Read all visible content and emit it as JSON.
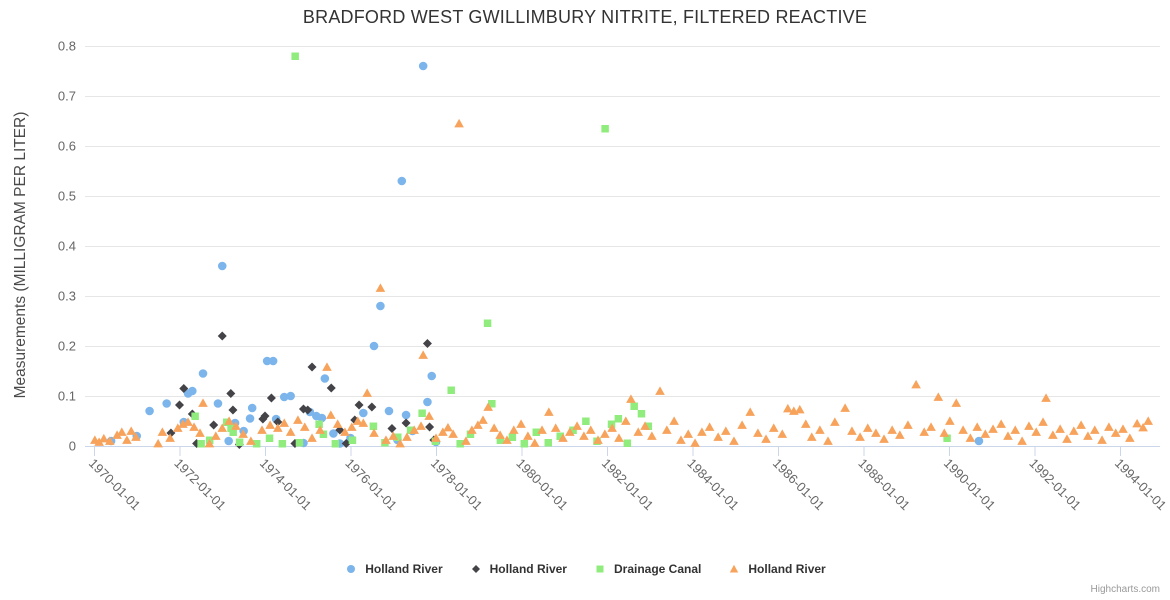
{
  "credits": "Highcharts.com",
  "styles": {
    "grid_color": "#e6e6e6",
    "axis_line_color": "#ccd6eb",
    "tick_label_color": "#666666",
    "title_color": "#333333",
    "legend_text_color": "#333333",
    "credits_color": "#999999"
  },
  "chart_data": {
    "type": "scatter",
    "title": "BRADFORD WEST GWILLIMBURY NITRITE, FILTERED REACTIVE",
    "xlabel": "",
    "ylabel": "Measurements (MILLIGRAM PER LITER)",
    "ylim": [
      0,
      0.8
    ],
    "y_ticks": [
      0,
      0.1,
      0.2,
      0.3,
      0.4,
      0.5,
      0.6,
      0.7,
      0.8
    ],
    "x_ticks": [
      "1970-01-01",
      "1972-01-01",
      "1974-01-01",
      "1976-01-01",
      "1978-01-01",
      "1980-01-01",
      "1982-01-01",
      "1984-01-01",
      "1986-01-01",
      "1988-01-01",
      "1990-01-01",
      "1992-01-01",
      "1994-01-01"
    ],
    "x_range_years": [
      1969.75,
      1996.1
    ],
    "grid": "horizontal",
    "legend_position": "bottom-center",
    "series": [
      {
        "name": "Holland River",
        "marker": "circle",
        "color": "#7cb5ec",
        "points": [
          [
            1970.4,
            0.01
          ],
          [
            1971.0,
            0.02
          ],
          [
            1971.3,
            0.07
          ],
          [
            1971.7,
            0.085
          ],
          [
            1972.1,
            0.048
          ],
          [
            1972.2,
            0.105
          ],
          [
            1972.3,
            0.11
          ],
          [
            1972.55,
            0.145
          ],
          [
            1972.9,
            0.085
          ],
          [
            1973.0,
            0.36
          ],
          [
            1973.15,
            0.01
          ],
          [
            1973.3,
            0.046
          ],
          [
            1973.5,
            0.03
          ],
          [
            1973.65,
            0.055
          ],
          [
            1973.7,
            0.076
          ],
          [
            1974.05,
            0.17
          ],
          [
            1974.19,
            0.17
          ],
          [
            1974.26,
            0.054
          ],
          [
            1974.45,
            0.098
          ],
          [
            1974.6,
            0.1
          ],
          [
            1974.9,
            0.006
          ],
          [
            1975.05,
            0.068
          ],
          [
            1975.2,
            0.06
          ],
          [
            1975.33,
            0.056
          ],
          [
            1975.4,
            0.135
          ],
          [
            1975.6,
            0.025
          ],
          [
            1975.75,
            0.005
          ],
          [
            1976.0,
            0.016
          ],
          [
            1976.3,
            0.066
          ],
          [
            1976.55,
            0.2
          ],
          [
            1976.7,
            0.28
          ],
          [
            1976.9,
            0.07
          ],
          [
            1977.1,
            0.012
          ],
          [
            1977.2,
            0.53
          ],
          [
            1977.3,
            0.062
          ],
          [
            1977.45,
            0.03
          ],
          [
            1977.7,
            0.76
          ],
          [
            1977.8,
            0.088
          ],
          [
            1977.9,
            0.14
          ],
          [
            1978.0,
            0.008
          ],
          [
            1990.7,
            0.01
          ]
        ]
      },
      {
        "name": "Holland River",
        "marker": "diamond",
        "color": "#434348",
        "points": [
          [
            1971.8,
            0.026
          ],
          [
            1972.0,
            0.082
          ],
          [
            1972.1,
            0.115
          ],
          [
            1972.3,
            0.064
          ],
          [
            1972.4,
            0.005
          ],
          [
            1972.8,
            0.042
          ],
          [
            1973.0,
            0.22
          ],
          [
            1973.2,
            0.105
          ],
          [
            1973.25,
            0.072
          ],
          [
            1973.4,
            0.003
          ],
          [
            1973.95,
            0.054
          ],
          [
            1974.0,
            0.06
          ],
          [
            1974.15,
            0.096
          ],
          [
            1974.3,
            0.048
          ],
          [
            1974.7,
            0.005
          ],
          [
            1974.9,
            0.074
          ],
          [
            1975.0,
            0.072
          ],
          [
            1975.1,
            0.158
          ],
          [
            1975.55,
            0.116
          ],
          [
            1975.75,
            0.032
          ],
          [
            1975.9,
            0.005
          ],
          [
            1976.1,
            0.052
          ],
          [
            1976.2,
            0.082
          ],
          [
            1976.5,
            0.078
          ],
          [
            1976.97,
            0.035
          ],
          [
            1977.3,
            0.046
          ],
          [
            1977.8,
            0.205
          ],
          [
            1977.85,
            0.038
          ],
          [
            1977.95,
            0.012
          ]
        ]
      },
      {
        "name": "Drainage Canal",
        "marker": "square",
        "color": "#90ed7d",
        "points": [
          [
            1972.36,
            0.06
          ],
          [
            1972.5,
            0.005
          ],
          [
            1972.7,
            0.012
          ],
          [
            1973.1,
            0.048
          ],
          [
            1973.2,
            0.036
          ],
          [
            1973.25,
            0.028
          ],
          [
            1973.4,
            0.008
          ],
          [
            1973.8,
            0.005
          ],
          [
            1974.1,
            0.016
          ],
          [
            1974.4,
            0.005
          ],
          [
            1974.7,
            0.78
          ],
          [
            1974.8,
            0.007
          ],
          [
            1975.26,
            0.044
          ],
          [
            1975.36,
            0.024
          ],
          [
            1975.64,
            0.005
          ],
          [
            1976.04,
            0.012
          ],
          [
            1976.53,
            0.04
          ],
          [
            1976.8,
            0.007
          ],
          [
            1977.1,
            0.018
          ],
          [
            1977.4,
            0.032
          ],
          [
            1977.67,
            0.066
          ],
          [
            1977.98,
            0.01
          ],
          [
            1978.35,
            0.112
          ],
          [
            1978.56,
            0.005
          ],
          [
            1978.8,
            0.024
          ],
          [
            1979.2,
            0.246
          ],
          [
            1979.3,
            0.085
          ],
          [
            1979.5,
            0.012
          ],
          [
            1979.78,
            0.018
          ],
          [
            1980.06,
            0.005
          ],
          [
            1980.34,
            0.028
          ],
          [
            1980.62,
            0.007
          ],
          [
            1980.9,
            0.02
          ],
          [
            1981.2,
            0.032
          ],
          [
            1981.5,
            0.05
          ],
          [
            1981.76,
            0.01
          ],
          [
            1981.95,
            0.635
          ],
          [
            1982.1,
            0.044
          ],
          [
            1982.26,
            0.055
          ],
          [
            1982.47,
            0.006
          ],
          [
            1982.63,
            0.08
          ],
          [
            1982.8,
            0.065
          ],
          [
            1982.96,
            0.04
          ],
          [
            1989.95,
            0.016
          ]
        ]
      },
      {
        "name": "Holland River",
        "marker": "triangle",
        "color": "#f7a35c",
        "points": [
          [
            1970.02,
            0.012
          ],
          [
            1970.12,
            0.008
          ],
          [
            1970.23,
            0.015
          ],
          [
            1970.37,
            0.01
          ],
          [
            1970.54,
            0.022
          ],
          [
            1970.65,
            0.028
          ],
          [
            1970.77,
            0.012
          ],
          [
            1970.87,
            0.03
          ],
          [
            1970.98,
            0.018
          ],
          [
            1971.5,
            0.005
          ],
          [
            1971.6,
            0.028
          ],
          [
            1971.78,
            0.016
          ],
          [
            1971.96,
            0.036
          ],
          [
            1972.08,
            0.044
          ],
          [
            1972.2,
            0.048
          ],
          [
            1972.34,
            0.038
          ],
          [
            1972.48,
            0.026
          ],
          [
            1972.55,
            0.086
          ],
          [
            1972.7,
            0.005
          ],
          [
            1972.85,
            0.02
          ],
          [
            1973.0,
            0.036
          ],
          [
            1973.16,
            0.05
          ],
          [
            1973.32,
            0.04
          ],
          [
            1973.49,
            0.024
          ],
          [
            1973.67,
            0.01
          ],
          [
            1973.93,
            0.032
          ],
          [
            1974.12,
            0.042
          ],
          [
            1974.3,
            0.036
          ],
          [
            1974.45,
            0.046
          ],
          [
            1974.6,
            0.028
          ],
          [
            1974.77,
            0.052
          ],
          [
            1974.93,
            0.038
          ],
          [
            1975.1,
            0.016
          ],
          [
            1975.29,
            0.032
          ],
          [
            1975.45,
            0.158
          ],
          [
            1975.54,
            0.062
          ],
          [
            1975.7,
            0.044
          ],
          [
            1975.87,
            0.028
          ],
          [
            1976.03,
            0.038
          ],
          [
            1976.17,
            0.05
          ],
          [
            1976.3,
            0.046
          ],
          [
            1976.39,
            0.106
          ],
          [
            1976.55,
            0.026
          ],
          [
            1976.7,
            0.316
          ],
          [
            1976.83,
            0.012
          ],
          [
            1977.0,
            0.02
          ],
          [
            1977.16,
            0.005
          ],
          [
            1977.32,
            0.018
          ],
          [
            1977.49,
            0.032
          ],
          [
            1977.65,
            0.04
          ],
          [
            1977.7,
            0.182
          ],
          [
            1977.84,
            0.06
          ],
          [
            1978.0,
            0.016
          ],
          [
            1978.16,
            0.028
          ],
          [
            1978.28,
            0.037
          ],
          [
            1978.4,
            0.024
          ],
          [
            1978.54,
            0.645
          ],
          [
            1978.7,
            0.01
          ],
          [
            1978.84,
            0.032
          ],
          [
            1978.98,
            0.042
          ],
          [
            1979.1,
            0.052
          ],
          [
            1979.22,
            0.078
          ],
          [
            1979.36,
            0.036
          ],
          [
            1979.5,
            0.022
          ],
          [
            1979.66,
            0.012
          ],
          [
            1979.82,
            0.032
          ],
          [
            1979.99,
            0.044
          ],
          [
            1980.15,
            0.02
          ],
          [
            1980.31,
            0.006
          ],
          [
            1980.48,
            0.032
          ],
          [
            1980.64,
            0.068
          ],
          [
            1980.8,
            0.036
          ],
          [
            1980.97,
            0.016
          ],
          [
            1981.13,
            0.028
          ],
          [
            1981.3,
            0.04
          ],
          [
            1981.46,
            0.02
          ],
          [
            1981.62,
            0.032
          ],
          [
            1981.79,
            0.012
          ],
          [
            1981.95,
            0.024
          ],
          [
            1982.12,
            0.036
          ],
          [
            1982.28,
            0.016
          ],
          [
            1982.44,
            0.05
          ],
          [
            1982.56,
            0.094
          ],
          [
            1982.73,
            0.028
          ],
          [
            1982.89,
            0.04
          ],
          [
            1983.05,
            0.02
          ],
          [
            1983.24,
            0.11
          ],
          [
            1983.4,
            0.032
          ],
          [
            1983.57,
            0.05
          ],
          [
            1983.73,
            0.012
          ],
          [
            1983.9,
            0.024
          ],
          [
            1984.06,
            0.006
          ],
          [
            1984.22,
            0.028
          ],
          [
            1984.4,
            0.038
          ],
          [
            1984.6,
            0.018
          ],
          [
            1984.78,
            0.03
          ],
          [
            1984.97,
            0.01
          ],
          [
            1985.16,
            0.042
          ],
          [
            1985.35,
            0.068
          ],
          [
            1985.53,
            0.026
          ],
          [
            1985.72,
            0.014
          ],
          [
            1985.9,
            0.036
          ],
          [
            1986.1,
            0.024
          ],
          [
            1986.23,
            0.075
          ],
          [
            1986.37,
            0.07
          ],
          [
            1986.51,
            0.073
          ],
          [
            1986.65,
            0.044
          ],
          [
            1986.79,
            0.018
          ],
          [
            1986.98,
            0.032
          ],
          [
            1987.17,
            0.01
          ],
          [
            1987.33,
            0.048
          ],
          [
            1987.57,
            0.076
          ],
          [
            1987.73,
            0.03
          ],
          [
            1987.92,
            0.018
          ],
          [
            1988.1,
            0.036
          ],
          [
            1988.29,
            0.026
          ],
          [
            1988.48,
            0.014
          ],
          [
            1988.67,
            0.032
          ],
          [
            1988.85,
            0.022
          ],
          [
            1989.04,
            0.042
          ],
          [
            1989.23,
            0.123
          ],
          [
            1989.42,
            0.028
          ],
          [
            1989.58,
            0.038
          ],
          [
            1989.75,
            0.098
          ],
          [
            1989.89,
            0.026
          ],
          [
            1990.02,
            0.05
          ],
          [
            1990.17,
            0.086
          ],
          [
            1990.33,
            0.032
          ],
          [
            1990.5,
            0.016
          ],
          [
            1990.66,
            0.038
          ],
          [
            1990.85,
            0.024
          ],
          [
            1991.03,
            0.034
          ],
          [
            1991.22,
            0.044
          ],
          [
            1991.38,
            0.02
          ],
          [
            1991.55,
            0.032
          ],
          [
            1991.71,
            0.01
          ],
          [
            1991.87,
            0.04
          ],
          [
            1992.04,
            0.028
          ],
          [
            1992.2,
            0.048
          ],
          [
            1992.27,
            0.096
          ],
          [
            1992.43,
            0.022
          ],
          [
            1992.6,
            0.034
          ],
          [
            1992.76,
            0.014
          ],
          [
            1992.92,
            0.03
          ],
          [
            1993.09,
            0.042
          ],
          [
            1993.25,
            0.02
          ],
          [
            1993.41,
            0.032
          ],
          [
            1993.58,
            0.012
          ],
          [
            1993.74,
            0.038
          ],
          [
            1993.9,
            0.026
          ],
          [
            1994.07,
            0.034
          ],
          [
            1994.23,
            0.016
          ],
          [
            1994.4,
            0.045
          ],
          [
            1994.54,
            0.037
          ],
          [
            1994.66,
            0.05
          ]
        ]
      }
    ]
  }
}
